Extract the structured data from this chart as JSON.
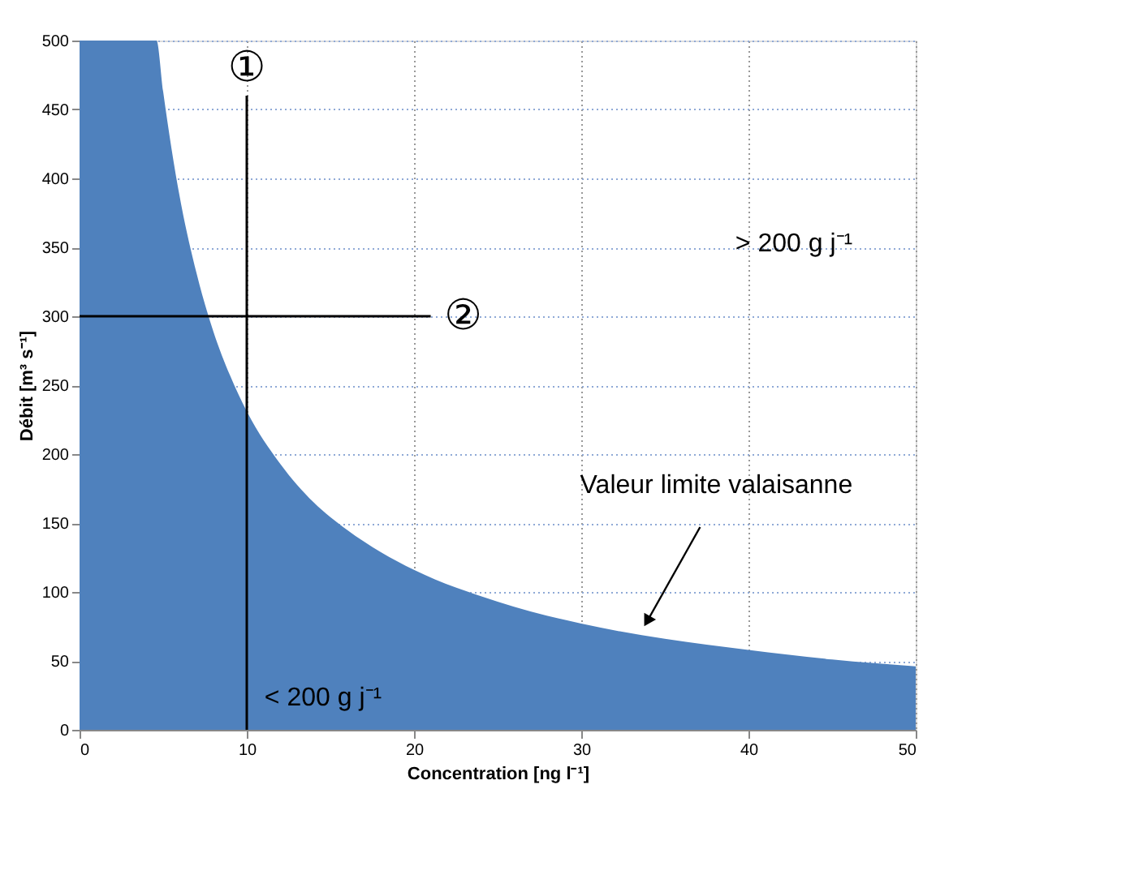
{
  "chart_data": {
    "type": "area",
    "xlabel": "Concentration [ng l⁻¹]",
    "ylabel": "Débit [m³ s⁻¹]",
    "xlim": [
      0,
      50
    ],
    "xticks": [
      0,
      10,
      20,
      30,
      40,
      50
    ],
    "ylim": [
      0,
      500
    ],
    "yticks": [
      0,
      50,
      100,
      150,
      200,
      250,
      300,
      350,
      400,
      450,
      500
    ],
    "grid": true,
    "series": [
      {
        "color": "#4f81bd",
        "x": [
          0,
          4.6,
          5,
          6,
          7,
          8,
          9,
          10,
          12,
          14,
          16,
          18,
          20,
          25,
          30,
          35,
          40,
          45,
          50
        ],
        "values": [
          500,
          500,
          463,
          386,
          331,
          289,
          257,
          231,
          193,
          165,
          145,
          129,
          116,
          93,
          77,
          66,
          58,
          51,
          46
        ]
      },
      {
        "type": "line",
        "color": "#000000",
        "x": [
          10,
          10
        ],
        "values": [
          0,
          460
        ]
      },
      {
        "type": "line",
        "color": "#000000",
        "x": [
          0,
          21
        ],
        "values": [
          300,
          300
        ]
      }
    ],
    "annotations": [
      "①",
      "②",
      "> 200 g j⁻¹",
      "< 200 g j⁻¹",
      {
        "text": "Valeur limite valaisanne",
        "x": 34,
        "y": 80
      }
    ]
  }
}
